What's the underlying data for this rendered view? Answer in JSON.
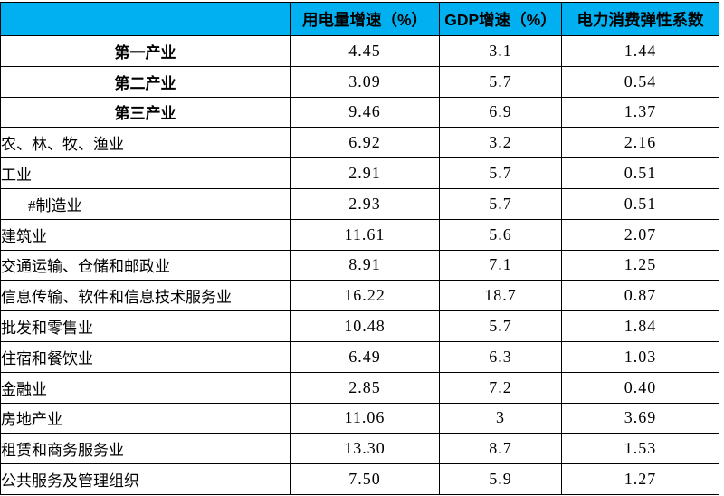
{
  "table": {
    "header_fill": "#00B0F0",
    "grid_color": "#000000",
    "columns": [
      {
        "label": ""
      },
      {
        "label": "用电量增速（%）"
      },
      {
        "label": "GDP增速（%）"
      },
      {
        "label": "电力消费弹性系数"
      }
    ],
    "rows": [
      {
        "label": "第一产业",
        "style": "summary",
        "values": [
          "4.45",
          "3.1",
          "1.44"
        ]
      },
      {
        "label": "第二产业",
        "style": "summary",
        "values": [
          "3.09",
          "5.7",
          "0.54"
        ]
      },
      {
        "label": "第三产业",
        "style": "summary",
        "values": [
          "9.46",
          "6.9",
          "1.37"
        ]
      },
      {
        "label": "农、林、牧、渔业",
        "style": "normal",
        "values": [
          "6.92",
          "3.2",
          "2.16"
        ]
      },
      {
        "label": "工业",
        "style": "normal",
        "values": [
          "2.91",
          "5.7",
          "0.51"
        ]
      },
      {
        "label": "#制造业",
        "style": "indented",
        "values": [
          "2.93",
          "5.7",
          "0.51"
        ]
      },
      {
        "label": "建筑业",
        "style": "normal",
        "values": [
          "11.61",
          "5.6",
          "2.07"
        ]
      },
      {
        "label": "交通运输、仓储和邮政业",
        "style": "normal",
        "values": [
          "8.91",
          "7.1",
          "1.25"
        ]
      },
      {
        "label": "信息传输、软件和信息技术服务业",
        "style": "normal",
        "values": [
          "16.22",
          "18.7",
          "0.87"
        ]
      },
      {
        "label": "批发和零售业",
        "style": "normal",
        "values": [
          "10.48",
          "5.7",
          "1.84"
        ]
      },
      {
        "label": "住宿和餐饮业",
        "style": "normal",
        "values": [
          "6.49",
          "6.3",
          "1.03"
        ]
      },
      {
        "label": "金融业",
        "style": "normal",
        "values": [
          "2.85",
          "7.2",
          "0.40"
        ]
      },
      {
        "label": "房地产业",
        "style": "normal",
        "values": [
          "11.06",
          "3",
          "3.69"
        ]
      },
      {
        "label": "租赁和商务服务业",
        "style": "normal",
        "values": [
          "13.30",
          "8.7",
          "1.53"
        ]
      },
      {
        "label": "公共服务及管理组织",
        "style": "normal",
        "values": [
          "7.50",
          "5.9",
          "1.27"
        ]
      }
    ]
  }
}
